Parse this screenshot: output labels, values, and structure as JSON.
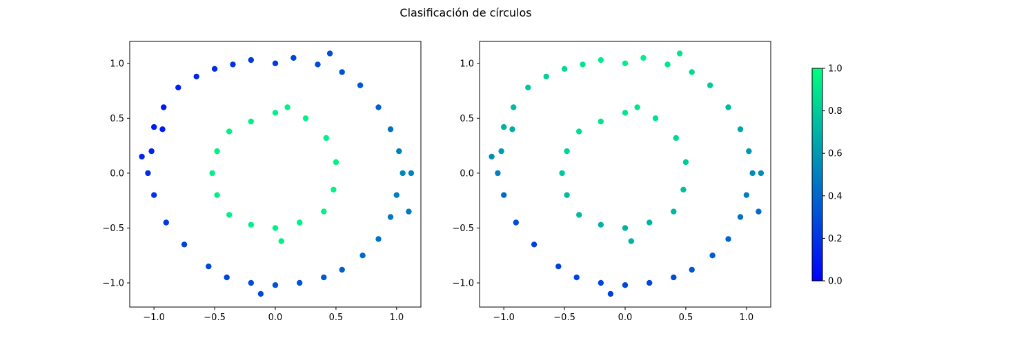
{
  "title": "Clasificación de círculos",
  "colormap": {
    "name": "winter",
    "low": "#0000ff",
    "high": "#00ff80"
  },
  "chart_data": [
    {
      "type": "scatter",
      "title": "",
      "xlabel": "",
      "ylabel": "",
      "xlim": [
        -1.2,
        1.2
      ],
      "ylim": [
        -1.22,
        1.2
      ],
      "xticks": [
        -1.0,
        -0.5,
        0.0,
        0.5,
        1.0
      ],
      "yticks": [
        -1.0,
        -0.5,
        0.0,
        0.5,
        1.0
      ],
      "xtick_labels": [
        "−1.0",
        "−0.5",
        "0.0",
        "0.5",
        "1.0"
      ],
      "ytick_labels": [
        "−1.0",
        "−0.5",
        "0.0",
        "0.5",
        "1.0"
      ],
      "color_encoding": "true class: outer ring blue→light-blue gradient, inner ring spring green",
      "points": [
        [
          -1.0,
          0.42,
          0.1
        ],
        [
          -0.92,
          0.6,
          0.1
        ],
        [
          -0.8,
          0.78,
          0.12
        ],
        [
          -0.65,
          0.88,
          0.15
        ],
        [
          -0.5,
          0.95,
          0.17
        ],
        [
          -0.35,
          0.99,
          0.2
        ],
        [
          -0.2,
          1.03,
          0.22
        ],
        [
          0.0,
          1.0,
          0.24
        ],
        [
          0.15,
          1.05,
          0.26
        ],
        [
          0.35,
          0.99,
          0.3
        ],
        [
          0.55,
          0.92,
          0.32
        ],
        [
          0.7,
          0.8,
          0.35
        ],
        [
          0.85,
          0.6,
          0.38
        ],
        [
          0.95,
          0.4,
          0.45
        ],
        [
          1.02,
          0.2,
          0.5
        ],
        [
          1.05,
          0.0,
          0.52
        ],
        [
          1.0,
          -0.2,
          0.5
        ],
        [
          0.95,
          -0.4,
          0.47
        ],
        [
          0.85,
          -0.6,
          0.45
        ],
        [
          0.72,
          -0.75,
          0.42
        ],
        [
          0.55,
          -0.88,
          0.38
        ],
        [
          0.4,
          -0.95,
          0.35
        ],
        [
          0.2,
          -1.0,
          0.33
        ],
        [
          0.0,
          -1.02,
          0.32
        ],
        [
          -0.2,
          -1.0,
          0.3
        ],
        [
          -0.4,
          -0.95,
          0.28
        ],
        [
          -0.55,
          -0.85,
          0.27
        ],
        [
          -0.75,
          -0.65,
          0.25
        ],
        [
          -0.9,
          -0.45,
          0.22
        ],
        [
          -1.0,
          -0.2,
          0.2
        ],
        [
          -1.05,
          0.0,
          0.17
        ],
        [
          -1.02,
          0.2,
          0.13
        ],
        [
          -0.93,
          0.4,
          0.1
        ],
        [
          0.45,
          1.09,
          0.3
        ],
        [
          -0.12,
          -1.1,
          0.3
        ],
        [
          -1.1,
          0.15,
          0.15
        ],
        [
          1.12,
          0.0,
          0.5
        ],
        [
          1.1,
          -0.35,
          0.48
        ],
        [
          0.0,
          0.55,
          0.95
        ],
        [
          0.25,
          0.5,
          0.95
        ],
        [
          0.42,
          0.32,
          0.95
        ],
        [
          0.5,
          0.1,
          0.95
        ],
        [
          0.48,
          -0.15,
          0.95
        ],
        [
          0.4,
          -0.35,
          0.95
        ],
        [
          0.2,
          -0.45,
          0.95
        ],
        [
          0.0,
          -0.5,
          0.95
        ],
        [
          -0.2,
          -0.47,
          0.95
        ],
        [
          -0.38,
          -0.38,
          0.95
        ],
        [
          -0.48,
          -0.2,
          0.95
        ],
        [
          -0.52,
          0.0,
          0.95
        ],
        [
          -0.48,
          0.2,
          0.95
        ],
        [
          -0.38,
          0.38,
          0.95
        ],
        [
          -0.2,
          0.47,
          0.95
        ],
        [
          0.05,
          -0.62,
          0.95
        ],
        [
          0.1,
          0.6,
          0.95
        ]
      ]
    },
    {
      "type": "scatter",
      "title": "",
      "xlabel": "",
      "ylabel": "",
      "xlim": [
        -1.2,
        1.2
      ],
      "ylim": [
        -1.22,
        1.2
      ],
      "xticks": [
        -1.0,
        -0.5,
        0.0,
        0.5,
        1.0
      ],
      "yticks": [
        -1.0,
        -0.5,
        0.0,
        0.5,
        1.0
      ],
      "xtick_labels": [
        "−1.0",
        "−0.5",
        "0.0",
        "0.5",
        "1.0"
      ],
      "ytick_labels": [
        "−1.0",
        "−0.5",
        "0.0",
        "0.5",
        "1.0"
      ],
      "color_encoding": "predicted probability: high (green) at top, lower (blue) at bottom",
      "points": [
        [
          -1.0,
          0.42,
          0.68
        ],
        [
          -0.92,
          0.6,
          0.72
        ],
        [
          -0.8,
          0.78,
          0.78
        ],
        [
          -0.65,
          0.88,
          0.82
        ],
        [
          -0.5,
          0.95,
          0.86
        ],
        [
          -0.35,
          0.99,
          0.9
        ],
        [
          -0.2,
          1.03,
          0.92
        ],
        [
          0.0,
          1.0,
          0.93
        ],
        [
          0.15,
          1.05,
          0.93
        ],
        [
          0.35,
          0.99,
          0.9
        ],
        [
          0.55,
          0.92,
          0.86
        ],
        [
          0.7,
          0.8,
          0.8
        ],
        [
          0.85,
          0.6,
          0.72
        ],
        [
          0.95,
          0.4,
          0.66
        ],
        [
          1.02,
          0.2,
          0.6
        ],
        [
          1.05,
          0.0,
          0.55
        ],
        [
          1.0,
          -0.2,
          0.5
        ],
        [
          0.95,
          -0.4,
          0.45
        ],
        [
          0.85,
          -0.6,
          0.4
        ],
        [
          0.72,
          -0.75,
          0.36
        ],
        [
          0.55,
          -0.88,
          0.33
        ],
        [
          0.4,
          -0.95,
          0.3
        ],
        [
          0.2,
          -1.0,
          0.28
        ],
        [
          0.0,
          -1.02,
          0.27
        ],
        [
          -0.2,
          -1.0,
          0.27
        ],
        [
          -0.4,
          -0.95,
          0.27
        ],
        [
          -0.55,
          -0.85,
          0.26
        ],
        [
          -0.75,
          -0.65,
          0.25
        ],
        [
          -0.9,
          -0.45,
          0.3
        ],
        [
          -1.0,
          -0.2,
          0.42
        ],
        [
          -1.05,
          0.0,
          0.5
        ],
        [
          -1.02,
          0.2,
          0.6
        ],
        [
          -0.93,
          0.4,
          0.67
        ],
        [
          0.45,
          1.09,
          0.9
        ],
        [
          -0.12,
          -1.1,
          0.25
        ],
        [
          -1.1,
          0.15,
          0.55
        ],
        [
          1.12,
          0.0,
          0.55
        ],
        [
          1.1,
          -0.35,
          0.42
        ],
        [
          0.0,
          0.55,
          0.9
        ],
        [
          0.25,
          0.5,
          0.88
        ],
        [
          0.42,
          0.32,
          0.85
        ],
        [
          0.5,
          0.1,
          0.8
        ],
        [
          0.48,
          -0.15,
          0.75
        ],
        [
          0.4,
          -0.35,
          0.72
        ],
        [
          0.2,
          -0.45,
          0.7
        ],
        [
          0.0,
          -0.5,
          0.7
        ],
        [
          -0.2,
          -0.47,
          0.7
        ],
        [
          -0.38,
          -0.38,
          0.72
        ],
        [
          -0.48,
          -0.2,
          0.74
        ],
        [
          -0.52,
          0.0,
          0.78
        ],
        [
          -0.48,
          0.2,
          0.83
        ],
        [
          -0.38,
          0.38,
          0.87
        ],
        [
          -0.2,
          0.47,
          0.9
        ],
        [
          0.05,
          -0.62,
          0.7
        ],
        [
          0.1,
          0.6,
          0.9
        ]
      ]
    }
  ],
  "colorbar": {
    "ticks": [
      0.0,
      0.2,
      0.4,
      0.6,
      0.8,
      1.0
    ],
    "tick_labels": [
      "0.0",
      "0.2",
      "0.4",
      "0.6",
      "0.8",
      "1.0"
    ]
  }
}
